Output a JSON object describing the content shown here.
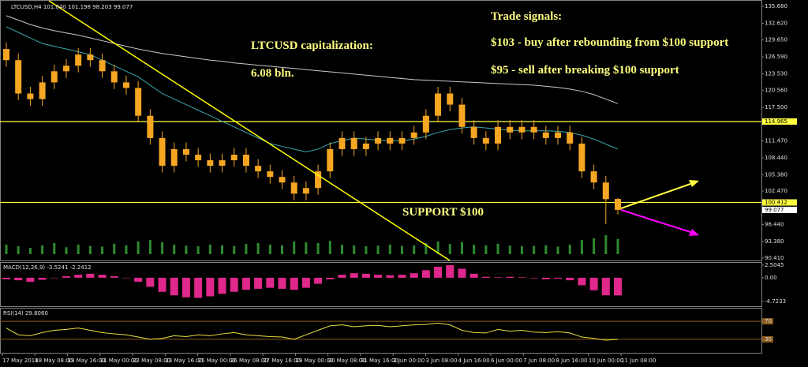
{
  "chart_data": {
    "type": "candlestick",
    "title": "LTCUSD,H4 101.040 101.198 98.203 99.077",
    "annotations": [
      "LTCUSD capitalization:",
      "6.08 bln.",
      "Trade signals:",
      "$103 - buy after rebounding from $100 support",
      "$95 - sell after breaking $100 support",
      "SUPPORT $100"
    ],
    "x_labels": [
      "17 May 2018",
      "18 May 08:00",
      "19 May 16:00",
      "21 May 00:00",
      "22 May 08:00",
      "23 May 16:00",
      "25 May 00:00",
      "26 May 08:00",
      "27 May 16:00",
      "29 May 00:00",
      "30 May 08:00",
      "31 May 16:00",
      "2 Jun 00:00",
      "3 Jun 08:00",
      "4 Jun 16:00",
      "6 Jun 00:00",
      "7 Jun 08:00",
      "8 Jun 16:00",
      "10 Jun 00:00",
      "11 Jun 08:00"
    ],
    "color": "#f5a623",
    "open": [
      128,
      126,
      120,
      119,
      122,
      124,
      125,
      127,
      126,
      124,
      122,
      121,
      116,
      112,
      107,
      110,
      109,
      108,
      107,
      108,
      109,
      107,
      106,
      105,
      104,
      102,
      103,
      106,
      110,
      112,
      110,
      111,
      112,
      111,
      112,
      113,
      116,
      120,
      118,
      114,
      112,
      111,
      114,
      113,
      114,
      113,
      112,
      113,
      111,
      106,
      104,
      101.04
    ],
    "high": [
      129.2,
      127.2,
      121.2,
      123.2,
      125.2,
      126.2,
      128.2,
      128.2,
      127.2,
      125.2,
      123.2,
      122.2,
      117.2,
      113.2,
      111.2,
      111.2,
      110.2,
      109.2,
      109.2,
      110.2,
      110.2,
      108.2,
      107.2,
      106.2,
      105.2,
      104.2,
      107.2,
      111.2,
      113.2,
      113.2,
      112.2,
      113.2,
      113.2,
      113.2,
      114.2,
      117.2,
      121.2,
      121.2,
      119.2,
      115.2,
      113.2,
      115.2,
      115.2,
      115.2,
      115.2,
      114.2,
      114.2,
      114.2,
      112.2,
      107.2,
      105.2,
      101.198
    ],
    "low": [
      124.8,
      118.8,
      117.8,
      117.8,
      120.8,
      122.8,
      123.8,
      124.8,
      122.8,
      120.8,
      119.8,
      114.8,
      110.8,
      105.8,
      105.8,
      107.8,
      106.8,
      105.8,
      105.8,
      106.8,
      105.8,
      104.8,
      103.8,
      102.8,
      100.8,
      100.8,
      101.8,
      104.8,
      108.8,
      108.8,
      108.8,
      109.8,
      109.8,
      109.8,
      110.8,
      111.8,
      114.8,
      116.8,
      112.8,
      110.8,
      109.8,
      109.8,
      111.8,
      111.8,
      111.8,
      110.8,
      110.8,
      109.8,
      104.8,
      102.8,
      96.5,
      98.203
    ],
    "close": [
      126,
      120,
      119,
      122,
      124,
      125,
      127,
      126,
      124,
      122,
      121,
      116,
      112,
      107,
      110,
      109,
      108,
      107,
      108,
      109,
      107,
      106,
      105,
      104,
      102,
      103,
      106,
      110,
      112,
      110,
      111,
      112,
      111,
      112,
      113,
      116,
      120,
      118,
      114,
      112,
      111,
      114,
      113,
      114,
      113,
      112,
      113,
      111,
      106,
      104,
      101,
      99.077
    ],
    "overlays": [
      {
        "color": "#c8c8c8",
        "values": [
          134,
          133.2,
          132.4,
          131.8,
          131.3,
          130.9,
          130.5,
          130,
          129.5,
          129,
          128.5,
          128,
          127.6,
          127.2,
          126.9,
          126.6,
          126.3,
          126,
          125.8,
          125.5,
          125.3,
          125.1,
          124.9,
          124.7,
          124.5,
          124.3,
          124.1,
          123.9,
          123.7,
          123.5,
          123.3,
          123.1,
          122.9,
          122.7,
          122.5,
          122.4,
          122.3,
          122.2,
          122.1,
          122,
          121.9,
          121.8,
          121.7,
          121.6,
          121.5,
          121.3,
          121.1,
          120.8,
          120.4,
          119.8,
          119,
          118.2
        ]
      },
      {
        "color": "#3aa6b0",
        "values": [
          132,
          131,
          130,
          129,
          128.5,
          128,
          127.5,
          127,
          126,
          125,
          124,
          123,
          121.5,
          120,
          119,
          118,
          117,
          116,
          115,
          114,
          113,
          112,
          111,
          110.5,
          110,
          109.5,
          110,
          111,
          111.5,
          112,
          111.8,
          111.6,
          111.5,
          111.5,
          111.8,
          112.3,
          113,
          113.5,
          113.8,
          114,
          113.8,
          113.6,
          113.4,
          113.3,
          113.3,
          113.3,
          113.2,
          113,
          112.5,
          111.8,
          110.9,
          110
        ]
      }
    ],
    "ylim": [
      89.98,
      136.82
    ],
    "yticks": [
      {
        "value": 135.68,
        "label": "135.680"
      },
      {
        "value": 132.62,
        "label": "132.620"
      },
      {
        "value": 129.65,
        "label": "129.650"
      },
      {
        "value": 126.59,
        "label": "126.590"
      },
      {
        "value": 123.53,
        "label": "123.530"
      },
      {
        "value": 120.56,
        "label": "120.560"
      },
      {
        "value": 117.5,
        "label": "117.500"
      },
      {
        "value": 114.965,
        "label": "114.965",
        "style": "level"
      },
      {
        "value": 111.47,
        "label": "111.470"
      },
      {
        "value": 108.44,
        "label": "108.440"
      },
      {
        "value": 105.38,
        "label": "105.380"
      },
      {
        "value": 102.47,
        "label": "102.470"
      },
      {
        "value": 100.412,
        "label": "100.412",
        "style": "level"
      },
      {
        "value": 99.077,
        "label": "99.077",
        "style": "price"
      },
      {
        "value": 96.44,
        "label": "96.440"
      },
      {
        "value": 93.38,
        "label": "93.380"
      },
      {
        "value": 90.41,
        "label": "90.410"
      }
    ],
    "volume": {
      "color": "#2e8b2e",
      "ylim": [
        0,
        100
      ],
      "values": [
        30,
        25,
        20,
        28,
        35,
        22,
        30,
        26,
        24,
        33,
        28,
        40,
        45,
        38,
        30,
        27,
        25,
        30,
        28,
        26,
        32,
        35,
        30,
        28,
        40,
        38,
        35,
        42,
        30,
        28,
        25,
        27,
        30,
        26,
        28,
        35,
        40,
        32,
        38,
        30,
        28,
        33,
        27,
        25,
        26,
        28,
        24,
        30,
        45,
        50,
        60,
        48
      ]
    },
    "macd": {
      "title": "MACD(12,26,9) -3.5241 -2.2412",
      "color": "#e0288c",
      "ylim": [
        -5.67,
        3.13
      ],
      "yticks": [
        {
          "value": 2.5045,
          "label": "2.5045"
        },
        {
          "value": 0,
          "label": "0.00"
        },
        {
          "value": -4.7233,
          "label": "-4.7233"
        }
      ],
      "values": [
        -0.3,
        -0.5,
        -0.8,
        -0.4,
        0,
        0.3,
        0.6,
        0.8,
        0.6,
        0.3,
        0,
        -0.8,
        -1.8,
        -2.8,
        -3.5,
        -3.9,
        -4,
        -3.7,
        -3.2,
        -2.8,
        -2.4,
        -2.2,
        -2,
        -2.2,
        -2.4,
        -2,
        -1.2,
        -0.3,
        0.6,
        0.9,
        0.8,
        0.6,
        0.5,
        0.6,
        0.9,
        1.5,
        2.2,
        2.5,
        1.8,
        0.8,
        0.2,
        0.1,
        0.2,
        0.1,
        -0.1,
        -0.3,
        -0.2,
        -0.5,
        -1.5,
        -2.5,
        -3.5,
        -3.5241
      ]
    },
    "rsi": {
      "title": "RSI(14) 29.8060",
      "color": "#e8e040",
      "ylim": [
        0,
        100
      ],
      "yticks": [
        70,
        30
      ],
      "values": [
        55,
        40,
        38,
        45,
        50,
        52,
        55,
        50,
        45,
        42,
        40,
        35,
        30,
        32,
        38,
        36,
        40,
        38,
        42,
        45,
        40,
        38,
        36,
        35,
        30,
        40,
        50,
        60,
        62,
        58,
        60,
        61,
        58,
        60,
        62,
        63,
        66,
        62,
        50,
        45,
        44,
        52,
        48,
        50,
        46,
        45,
        47,
        44,
        35,
        32,
        28,
        29.806
      ]
    }
  }
}
